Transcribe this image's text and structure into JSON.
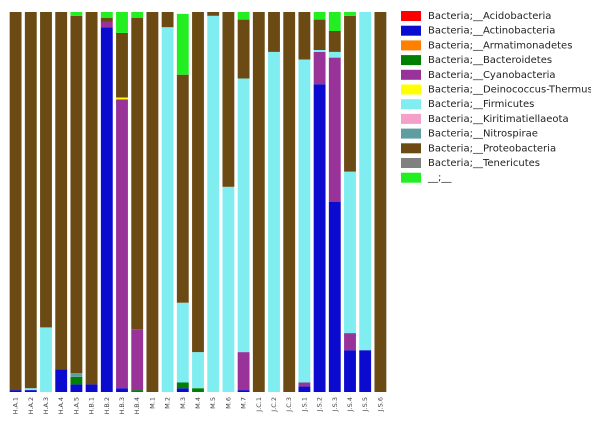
{
  "chart_data": {
    "type": "stacked_bar",
    "categories": [
      "H.A.1",
      "H.A.2",
      "H.A.3",
      "H.A.4",
      "H.A.5",
      "H.B.1",
      "H.B.2",
      "H.B.3",
      "H.B.4",
      "M.1",
      "M.2",
      "M.3",
      "M.4",
      "M.5",
      "M.6",
      "M.7",
      "J.C.1",
      "J.C.2",
      "J.C.3",
      "J.S.1",
      "J.S.2",
      "J.S.3",
      "J.S.4",
      "J.S.5",
      "J.S.6"
    ],
    "ylim": [
      0,
      100
    ],
    "series": [
      {
        "name": "Bacteria;__Acidobacteria",
        "color": "#ff0000",
        "values": [
          0,
          0,
          0,
          0,
          0,
          0,
          0,
          0,
          0,
          0,
          0,
          0,
          0,
          0,
          0,
          0,
          0,
          0,
          0,
          0,
          0,
          0,
          0,
          0,
          0
        ]
      },
      {
        "name": "Bacteria;__Actinobacteria",
        "color": "#0b0bd0",
        "values": [
          0.5,
          0.5,
          0,
          6,
          2,
          2,
          96,
          1,
          0,
          0,
          0,
          1,
          0,
          0,
          0,
          0.5,
          0,
          0,
          0,
          1.5,
          81,
          50,
          11,
          11,
          0
        ]
      },
      {
        "name": "Bacteria;__Armatimonadetes",
        "color": "#ff8000",
        "values": [
          0,
          0,
          0,
          0,
          0,
          0,
          0,
          0,
          0,
          0,
          0,
          0,
          0,
          0,
          0,
          0,
          0,
          0,
          0,
          0,
          0,
          0,
          0,
          0,
          0
        ]
      },
      {
        "name": "Bacteria;__Bacteroidetes",
        "color": "#008000",
        "values": [
          0,
          0,
          0,
          0,
          2,
          0,
          0,
          0,
          0.5,
          0,
          0,
          1.5,
          1,
          0,
          0,
          0,
          0,
          0,
          0,
          0,
          0,
          0,
          0,
          0,
          0
        ]
      },
      {
        "name": "Bacteria;__Cyanobacteria",
        "color": "#993399",
        "values": [
          0,
          0,
          0,
          0,
          0,
          0,
          1.5,
          76,
          16,
          0,
          0,
          0,
          0,
          0,
          0,
          10,
          0,
          0,
          0,
          1,
          8.5,
          38,
          4.5,
          0,
          0
        ]
      },
      {
        "name": "Bacteria;__Deinococcus-Thermus",
        "color": "#ffff00",
        "values": [
          0,
          0,
          0,
          0,
          0,
          0,
          0,
          0.5,
          0,
          0,
          0,
          0,
          0,
          0,
          0,
          0,
          0,
          0,
          0,
          0,
          0,
          0,
          0,
          0,
          0
        ]
      },
      {
        "name": "Bacteria;__Firmicutes",
        "color": "#80eef0",
        "values": [
          0,
          0.5,
          17,
          0,
          0,
          0,
          0,
          0,
          0,
          0,
          96,
          21,
          9.5,
          99,
          54,
          72,
          0,
          89.5,
          0,
          85,
          0.5,
          1.5,
          42.5,
          89,
          0
        ]
      },
      {
        "name": "Bacteria;__Kiritimatiellaeota",
        "color": "#f4a0c8",
        "values": [
          0,
          0,
          0,
          0,
          0,
          0,
          0,
          0,
          0,
          0,
          0,
          0,
          0,
          0,
          0,
          0,
          0,
          0,
          0,
          0,
          0,
          0,
          0,
          0,
          0
        ]
      },
      {
        "name": "Bacteria;__Nitrospirae",
        "color": "#5f9ea0",
        "values": [
          0,
          0,
          0,
          0,
          1,
          0,
          0,
          0,
          0,
          0,
          0,
          0,
          0,
          0,
          0,
          0,
          0,
          0,
          0,
          0,
          0,
          0,
          0,
          0,
          0
        ]
      },
      {
        "name": "Bacteria;__Proteobacteria",
        "color": "#6b4a14",
        "values": [
          99.5,
          99,
          83,
          94,
          94,
          98,
          1,
          17,
          82,
          100,
          4,
          60,
          89.5,
          1,
          46,
          15.5,
          100,
          10.5,
          100,
          12.5,
          8,
          5.5,
          41,
          0,
          100
        ]
      },
      {
        "name": "Bacteria;__Tenericutes",
        "color": "#808080",
        "values": [
          0,
          0,
          0,
          0,
          0,
          0,
          0,
          0,
          0,
          0,
          0,
          0,
          0,
          0,
          0,
          0,
          0,
          0,
          0,
          0,
          0,
          0,
          0,
          0,
          0
        ]
      },
      {
        "name": "__;__",
        "color": "#22ee22",
        "values": [
          0,
          0,
          0,
          0,
          1,
          0,
          1.5,
          5.5,
          1.5,
          0,
          0,
          16,
          0,
          0,
          0,
          2,
          0,
          0,
          0,
          0,
          2,
          5,
          1,
          0,
          0
        ]
      }
    ]
  }
}
